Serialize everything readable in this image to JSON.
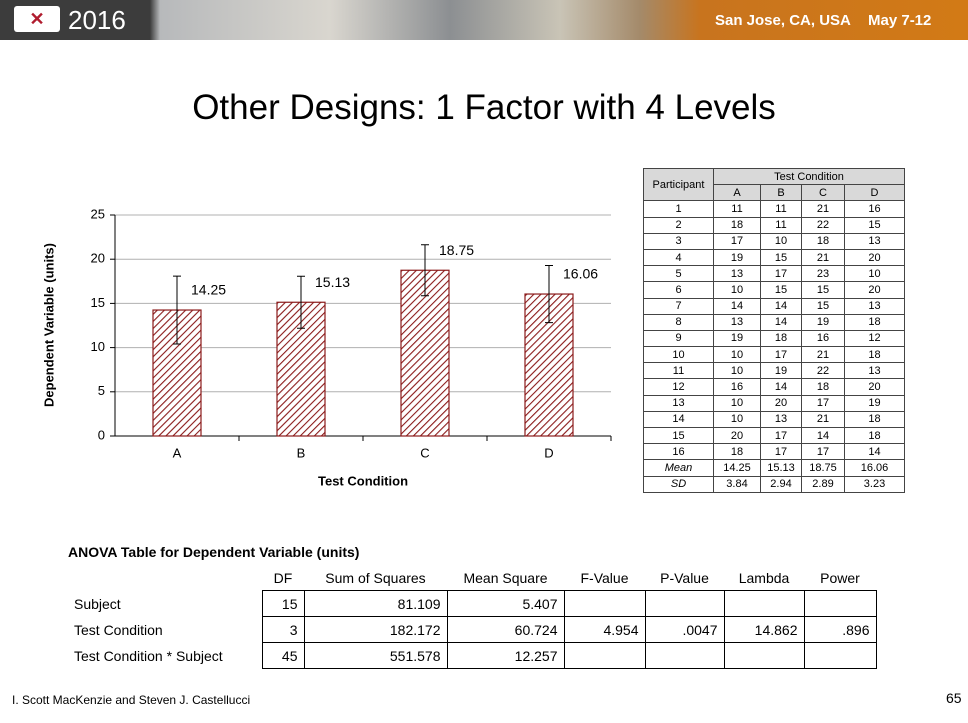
{
  "header": {
    "logo_year": "2016",
    "location": "San Jose, CA, USA",
    "dates": "May 7-12"
  },
  "title": "Other Designs: 1 Factor with 4 Levels",
  "chart_data": {
    "type": "bar",
    "y_label": "Dependent Variable (units)",
    "x_label": "Test Condition",
    "categories": [
      "A",
      "B",
      "C",
      "D"
    ],
    "values": [
      14.25,
      15.13,
      18.75,
      16.06
    ],
    "errors": [
      3.84,
      2.94,
      2.89,
      3.23
    ],
    "color": "#8b1a1a",
    "ylim": [
      0,
      25
    ],
    "yticks": [
      0,
      5,
      10,
      15,
      20,
      25
    ],
    "grid": true
  },
  "data_table": {
    "participant_header": "Participant",
    "group_header": "Test Condition",
    "columns": [
      "A",
      "B",
      "C",
      "D"
    ],
    "rows": [
      [
        "1",
        11,
        11,
        21,
        16
      ],
      [
        "2",
        18,
        11,
        22,
        15
      ],
      [
        "3",
        17,
        10,
        18,
        13
      ],
      [
        "4",
        19,
        15,
        21,
        20
      ],
      [
        "5",
        13,
        17,
        23,
        10
      ],
      [
        "6",
        10,
        15,
        15,
        20
      ],
      [
        "7",
        14,
        14,
        15,
        13
      ],
      [
        "8",
        13,
        14,
        19,
        18
      ],
      [
        "9",
        19,
        18,
        16,
        12
      ],
      [
        "10",
        10,
        17,
        21,
        18
      ],
      [
        "11",
        10,
        19,
        22,
        13
      ],
      [
        "12",
        16,
        14,
        18,
        20
      ],
      [
        "13",
        10,
        20,
        17,
        19
      ],
      [
        "14",
        10,
        13,
        21,
        18
      ],
      [
        "15",
        20,
        17,
        14,
        18
      ],
      [
        "16",
        18,
        17,
        17,
        14
      ]
    ],
    "summary_rows": [
      [
        "Mean",
        14.25,
        15.13,
        18.75,
        16.06
      ],
      [
        "SD",
        3.84,
        2.94,
        2.89,
        3.23
      ]
    ]
  },
  "anova": {
    "title": "ANOVA Table for Dependent Variable (units)",
    "columns": [
      "DF",
      "Sum of Squares",
      "Mean Square",
      "F-Value",
      "P-Value",
      "Lambda",
      "Power"
    ],
    "rows": [
      [
        "Subject",
        "15",
        "81.109",
        "5.407",
        "",
        "",
        "",
        ""
      ],
      [
        "Test Condition",
        "3",
        "182.172",
        "60.724",
        "4.954",
        ".0047",
        "14.862",
        ".896"
      ],
      [
        "Test Condition * Subject",
        "45",
        "551.578",
        "12.257",
        "",
        "",
        "",
        ""
      ]
    ]
  },
  "footer": {
    "authors": "I. Scott MacKenzie and Steven J. Castellucci",
    "page": "65"
  }
}
